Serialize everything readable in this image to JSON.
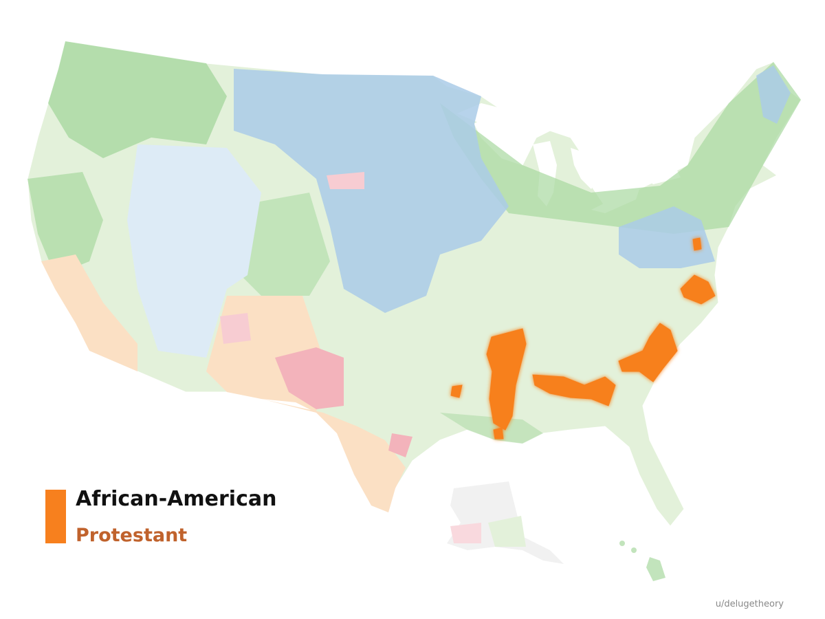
{
  "legend": {
    "color": "#f7801e",
    "label_line1": "African-American",
    "label_line2": "Protestant"
  },
  "credit": "u/delugetheory"
}
